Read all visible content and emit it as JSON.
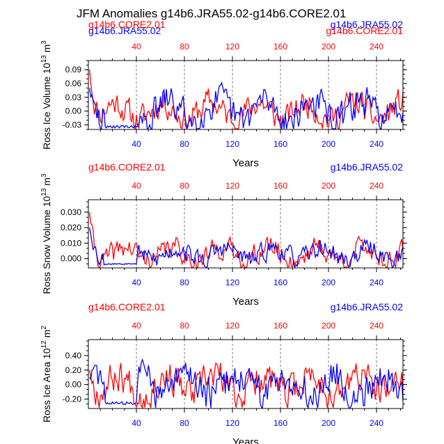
{
  "title": "JFM Anomalies g14b6.JRA55.02-g14b6.CORE2.01",
  "colors": {
    "core": "#ff0000",
    "jra": "#0000ff",
    "axis": "#000000",
    "grid": "#555555"
  },
  "chart_data": [
    {
      "type": "line",
      "ylabel": "Ross Ice Volume",
      "yunit_html": "10^13 m^3",
      "yunit_base": "10",
      "yunit_exp": "13",
      "yunit_suffix": "m",
      "yunit_suffix_exp": "3",
      "xlabel": "Years",
      "xlim": [
        0,
        262
      ],
      "ylim": [
        -0.04,
        0.11
      ],
      "yticks": [
        -0.03,
        0.0,
        0.03,
        0.06,
        0.09
      ],
      "ytick_labels": [
        "-0.03",
        "0.00",
        "0.03",
        "0.06",
        "0.09"
      ],
      "xticks": [
        40,
        80,
        120,
        160,
        200,
        240
      ],
      "xtick_labels": [
        "40",
        "80",
        "120",
        "160",
        "200",
        "240"
      ],
      "legend_left": "g14b6.CORE2.01",
      "legend_right": "g14b6.JRA55.02",
      "overlap_left": "g14b6.JRA55.02",
      "overlap_right": "g14b6.CORE2.01",
      "series": [
        {
          "name": "g14b6.CORE2.01",
          "color": "#ff0000",
          "seed": 11,
          "base": 0.0,
          "amp": 0.03,
          "start": 0.09,
          "lowDip": 0.0
        },
        {
          "name": "g14b6.JRA55.02",
          "color": "#0000ff",
          "seed": 29,
          "base": 0.0,
          "amp": 0.035,
          "start": 0.05,
          "lowDip": -0.04
        }
      ]
    },
    {
      "type": "line",
      "ylabel": "Ross Snow Volume",
      "yunit_base": "10",
      "yunit_exp": "13",
      "yunit_suffix": "m",
      "yunit_suffix_exp": "3",
      "xlabel": "Years",
      "xlim": [
        0,
        262
      ],
      "ylim": [
        -0.006,
        0.038
      ],
      "yticks": [
        0.0,
        0.01,
        0.02,
        0.03
      ],
      "ytick_labels": [
        "0.000",
        "0.010",
        "0.020",
        "0.030"
      ],
      "xticks": [
        40,
        80,
        120,
        160,
        200,
        240
      ],
      "xtick_labels": [
        "40",
        "80",
        "120",
        "160",
        "200",
        "240"
      ],
      "legend_left": "g14b6.CORE2.01",
      "legend_right": "g14b6.JRA55.02",
      "series": [
        {
          "name": "g14b6.CORE2.01",
          "color": "#ff0000",
          "seed": 41,
          "base": 0.003,
          "amp": 0.007,
          "start": 0.03,
          "lowDip": 0.0
        },
        {
          "name": "g14b6.JRA55.02",
          "color": "#0000ff",
          "seed": 53,
          "base": 0.003,
          "amp": 0.006,
          "start": 0.02,
          "lowDip": -0.004
        }
      ]
    },
    {
      "type": "line",
      "ylabel": "Ross Ice Area",
      "yunit_base": "10",
      "yunit_exp": "12",
      "yunit_suffix": "m",
      "yunit_suffix_exp": "2",
      "xlabel": "Years",
      "xlim": [
        0,
        262
      ],
      "ylim": [
        -0.33,
        0.62
      ],
      "yticks": [
        -0.2,
        0.0,
        0.2,
        0.4
      ],
      "ytick_labels": [
        "-0.20",
        "0.00",
        "0.20",
        "0.40"
      ],
      "xticks": [
        40,
        80,
        120,
        160,
        200,
        240
      ],
      "xtick_labels": [
        "40",
        "80",
        "120",
        "160",
        "200",
        "240"
      ],
      "legend_left": "g14b6.CORE2.01",
      "legend_right": "g14b6.JRA55.02",
      "series": [
        {
          "name": "g14b6.CORE2.01",
          "color": "#ff0000",
          "seed": 67,
          "base": 0.0,
          "amp": 0.22,
          "start": 0.2,
          "lowDip": 0.0
        },
        {
          "name": "g14b6.JRA55.02",
          "color": "#0000ff",
          "seed": 83,
          "base": 0.0,
          "amp": 0.25,
          "start": 0.1,
          "lowDip": -0.3
        }
      ]
    }
  ]
}
